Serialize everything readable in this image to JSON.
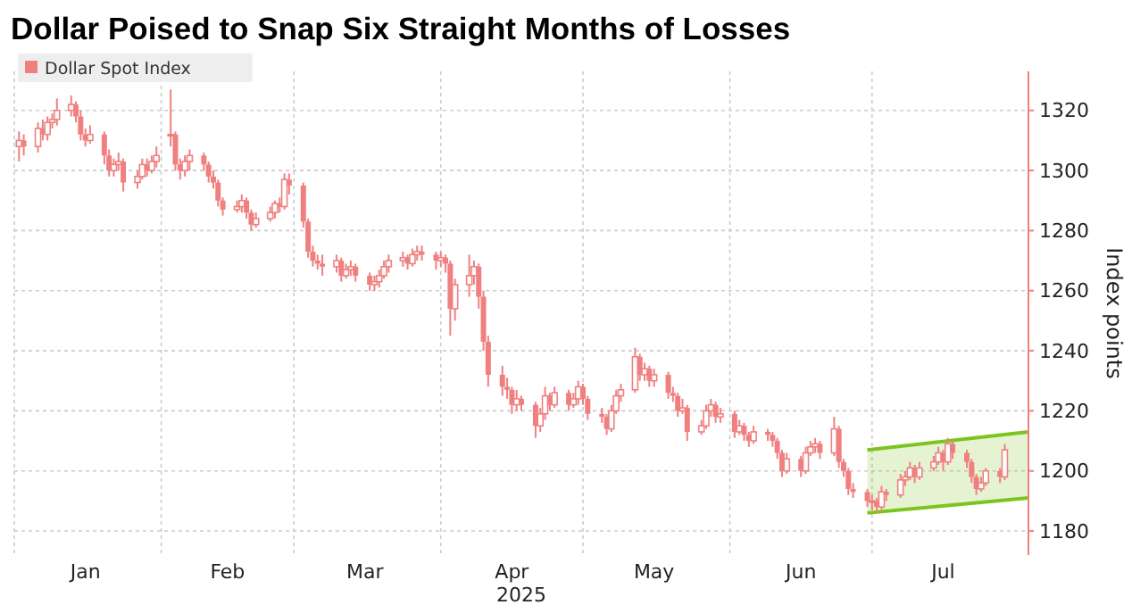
{
  "chart_data": {
    "type": "candlestick",
    "title": "Dollar Poised to Snap Six Straight Months of Losses",
    "xlabel": "2025",
    "ylabel": "Index points",
    "xlim": [
      "2025-01-01",
      "2025-08-03"
    ],
    "xticks": [
      {
        "value": "2025-01-01",
        "label": null
      },
      {
        "value": "2025-01-16",
        "label": "Jan"
      },
      {
        "value": "2025-02-01",
        "label": null
      },
      {
        "value": "2025-02-15",
        "label": "Feb"
      },
      {
        "value": "2025-03-01",
        "label": null
      },
      {
        "value": "2025-03-16",
        "label": "Mar"
      },
      {
        "value": "2025-04-01",
        "label": null
      },
      {
        "value": "2025-04-16",
        "label": "Apr"
      },
      {
        "value": "2025-05-01",
        "label": null
      },
      {
        "value": "2025-05-16",
        "label": "May"
      },
      {
        "value": "2025-06-01",
        "label": null
      },
      {
        "value": "2025-06-16",
        "label": "Jun"
      },
      {
        "value": "2025-07-01",
        "label": null
      },
      {
        "value": "2025-07-16",
        "label": "Jul"
      }
    ],
    "ylim": [
      1172,
      1333
    ],
    "yticks": [
      1180,
      1200,
      1220,
      1240,
      1260,
      1280,
      1300,
      1320
    ],
    "grid": true,
    "legend": "top left",
    "series": [
      {
        "type": "line",
        "color": "#7cc520",
        "x": [
          "2025-06-30",
          "2025-08-03"
        ],
        "values": [
          1207,
          1213
        ],
        "lower": [
          1186,
          1191
        ],
        "upper": [
          1207,
          1213
        ]
      },
      {
        "type": "line",
        "color": "#7cc520",
        "x": [
          "2025-06-30",
          "2025-08-03"
        ],
        "values": [
          1186,
          1191
        ]
      },
      {
        "name": "Dollar Spot Index",
        "color": "#f08080",
        "x": [
          "2025-01-02",
          "2025-01-03",
          "2025-01-06",
          "2025-01-07",
          "2025-01-08",
          "2025-01-09",
          "2025-01-10",
          "2025-01-13",
          "2025-01-14",
          "2025-01-15",
          "2025-01-16",
          "2025-01-17",
          "2025-01-20",
          "2025-01-21",
          "2025-01-22",
          "2025-01-23",
          "2025-01-24",
          "2025-01-27",
          "2025-01-28",
          "2025-01-29",
          "2025-01-30",
          "2025-01-31",
          "2025-02-03",
          "2025-02-04",
          "2025-02-05",
          "2025-02-06",
          "2025-02-07",
          "2025-02-10",
          "2025-02-11",
          "2025-02-12",
          "2025-02-13",
          "2025-02-14",
          "2025-02-17",
          "2025-02-18",
          "2025-02-19",
          "2025-02-20",
          "2025-02-21",
          "2025-02-24",
          "2025-02-25",
          "2025-02-26",
          "2025-02-27",
          "2025-02-28",
          "2025-03-03",
          "2025-03-04",
          "2025-03-05",
          "2025-03-06",
          "2025-03-07",
          "2025-03-10",
          "2025-03-11",
          "2025-03-12",
          "2025-03-13",
          "2025-03-14",
          "2025-03-17",
          "2025-03-18",
          "2025-03-19",
          "2025-03-20",
          "2025-03-21",
          "2025-03-24",
          "2025-03-25",
          "2025-03-26",
          "2025-03-27",
          "2025-03-28",
          "2025-03-31",
          "2025-04-01",
          "2025-04-02",
          "2025-04-03",
          "2025-04-04",
          "2025-04-07",
          "2025-04-08",
          "2025-04-09",
          "2025-04-10",
          "2025-04-11",
          "2025-04-14",
          "2025-04-15",
          "2025-04-16",
          "2025-04-17",
          "2025-04-18",
          "2025-04-21",
          "2025-04-22",
          "2025-04-23",
          "2025-04-24",
          "2025-04-25",
          "2025-04-28",
          "2025-04-29",
          "2025-04-30",
          "2025-05-01",
          "2025-05-02",
          "2025-05-05",
          "2025-05-06",
          "2025-05-07",
          "2025-05-08",
          "2025-05-09",
          "2025-05-12",
          "2025-05-13",
          "2025-05-14",
          "2025-05-15",
          "2025-05-16",
          "2025-05-19",
          "2025-05-20",
          "2025-05-21",
          "2025-05-22",
          "2025-05-23",
          "2025-05-26",
          "2025-05-27",
          "2025-05-28",
          "2025-05-29",
          "2025-05-30",
          "2025-06-02",
          "2025-06-03",
          "2025-06-04",
          "2025-06-05",
          "2025-06-06",
          "2025-06-09",
          "2025-06-10",
          "2025-06-11",
          "2025-06-12",
          "2025-06-13",
          "2025-06-16",
          "2025-06-17",
          "2025-06-18",
          "2025-06-19",
          "2025-06-20",
          "2025-06-23",
          "2025-06-24",
          "2025-06-25",
          "2025-06-26",
          "2025-06-27",
          "2025-06-30",
          "2025-07-01",
          "2025-07-02",
          "2025-07-03",
          "2025-07-04",
          "2025-07-07",
          "2025-07-08",
          "2025-07-09",
          "2025-07-10",
          "2025-07-11",
          "2025-07-14",
          "2025-07-15",
          "2025-07-16",
          "2025-07-17",
          "2025-07-18",
          "2025-07-21",
          "2025-07-22",
          "2025-07-23",
          "2025-07-24",
          "2025-07-25",
          "2025-07-28",
          "2025-07-29"
        ],
        "ohlc": [
          [
            1308,
            1313,
            1303,
            1310
          ],
          [
            1310,
            1312,
            1305,
            1308
          ],
          [
            1308,
            1316,
            1306,
            1314
          ],
          [
            1314,
            1317,
            1310,
            1312
          ],
          [
            1312,
            1318,
            1310,
            1316
          ],
          [
            1316,
            1319,
            1314,
            1317
          ],
          [
            1317,
            1324,
            1315,
            1320
          ],
          [
            1320,
            1325,
            1318,
            1322
          ],
          [
            1322,
            1323,
            1316,
            1318
          ],
          [
            1318,
            1320,
            1310,
            1312
          ],
          [
            1312,
            1314,
            1308,
            1310
          ],
          [
            1310,
            1315,
            1309,
            1312
          ],
          [
            1312,
            1313,
            1302,
            1305
          ],
          [
            1305,
            1307,
            1298,
            1300
          ],
          [
            1300,
            1304,
            1298,
            1302
          ],
          [
            1302,
            1306,
            1300,
            1303
          ],
          [
            1303,
            1304,
            1293,
            1296
          ],
          [
            1296,
            1300,
            1294,
            1298
          ],
          [
            1298,
            1304,
            1297,
            1302
          ],
          [
            1302,
            1304,
            1298,
            1300
          ],
          [
            1300,
            1305,
            1299,
            1303
          ],
          [
            1303,
            1308,
            1301,
            1305
          ],
          [
            1312,
            1327,
            1308,
            1312
          ],
          [
            1312,
            1313,
            1300,
            1302
          ],
          [
            1302,
            1304,
            1297,
            1300
          ],
          [
            1300,
            1305,
            1298,
            1303
          ],
          [
            1303,
            1307,
            1300,
            1305
          ],
          [
            1305,
            1306,
            1300,
            1302
          ],
          [
            1302,
            1303,
            1296,
            1298
          ],
          [
            1298,
            1300,
            1294,
            1296
          ],
          [
            1296,
            1297,
            1288,
            1290
          ],
          [
            1290,
            1291,
            1285,
            1287
          ],
          [
            1287,
            1290,
            1286,
            1288
          ],
          [
            1288,
            1292,
            1286,
            1290
          ],
          [
            1290,
            1291,
            1284,
            1286
          ],
          [
            1286,
            1287,
            1280,
            1282
          ],
          [
            1282,
            1286,
            1281,
            1284
          ],
          [
            1284,
            1288,
            1283,
            1286
          ],
          [
            1286,
            1290,
            1284,
            1289
          ],
          [
            1289,
            1291,
            1286,
            1288
          ],
          [
            1288,
            1299,
            1287,
            1297
          ],
          [
            1297,
            1299,
            1292,
            1295
          ],
          [
            1295,
            1296,
            1281,
            1283
          ],
          [
            1283,
            1284,
            1271,
            1273
          ],
          [
            1273,
            1275,
            1268,
            1270
          ],
          [
            1270,
            1272,
            1267,
            1269
          ],
          [
            1269,
            1272,
            1265,
            1268
          ],
          [
            1268,
            1272,
            1266,
            1270
          ],
          [
            1270,
            1271,
            1263,
            1265
          ],
          [
            1265,
            1269,
            1264,
            1267
          ],
          [
            1267,
            1270,
            1265,
            1268
          ],
          [
            1268,
            1269,
            1263,
            1265
          ],
          [
            1265,
            1266,
            1260,
            1262
          ],
          [
            1262,
            1265,
            1260,
            1263
          ],
          [
            1263,
            1267,
            1261,
            1265
          ],
          [
            1265,
            1270,
            1264,
            1268
          ],
          [
            1268,
            1272,
            1266,
            1270
          ],
          [
            1270,
            1273,
            1268,
            1271
          ],
          [
            1271,
            1272,
            1267,
            1269
          ],
          [
            1269,
            1274,
            1268,
            1272
          ],
          [
            1272,
            1275,
            1270,
            1273
          ],
          [
            1273,
            1275,
            1270,
            1272
          ],
          [
            1272,
            1273,
            1267,
            1270
          ],
          [
            1270,
            1273,
            1268,
            1271
          ],
          [
            1271,
            1272,
            1266,
            1269
          ],
          [
            1269,
            1270,
            1245,
            1254
          ],
          [
            1254,
            1264,
            1250,
            1262
          ],
          [
            1262,
            1272,
            1258,
            1265
          ],
          [
            1265,
            1270,
            1262,
            1268
          ],
          [
            1268,
            1269,
            1254,
            1258
          ],
          [
            1258,
            1260,
            1240,
            1243
          ],
          [
            1243,
            1245,
            1228,
            1232
          ],
          [
            1232,
            1235,
            1225,
            1228
          ],
          [
            1228,
            1231,
            1224,
            1227
          ],
          [
            1227,
            1228,
            1219,
            1222
          ],
          [
            1222,
            1227,
            1220,
            1224
          ],
          [
            1224,
            1225,
            1220,
            1222
          ],
          [
            1222,
            1223,
            1211,
            1215
          ],
          [
            1215,
            1221,
            1213,
            1219
          ],
          [
            1219,
            1228,
            1217,
            1225
          ],
          [
            1225,
            1226,
            1220,
            1222
          ],
          [
            1222,
            1228,
            1221,
            1226
          ],
          [
            1226,
            1227,
            1220,
            1222
          ],
          [
            1222,
            1226,
            1221,
            1224
          ],
          [
            1224,
            1230,
            1222,
            1228
          ],
          [
            1228,
            1229,
            1222,
            1224
          ],
          [
            1224,
            1225,
            1217,
            1219
          ],
          [
            1219,
            1221,
            1216,
            1218
          ],
          [
            1218,
            1219,
            1212,
            1214
          ],
          [
            1214,
            1222,
            1213,
            1220
          ],
          [
            1220,
            1227,
            1219,
            1225
          ],
          [
            1225,
            1229,
            1223,
            1227
          ],
          [
            1227,
            1241,
            1226,
            1238
          ],
          [
            1238,
            1239,
            1230,
            1232
          ],
          [
            1232,
            1236,
            1230,
            1234
          ],
          [
            1234,
            1235,
            1228,
            1230
          ],
          [
            1230,
            1234,
            1228,
            1232
          ],
          [
            1232,
            1233,
            1224,
            1226
          ],
          [
            1226,
            1228,
            1223,
            1225
          ],
          [
            1225,
            1226,
            1218,
            1220
          ],
          [
            1220,
            1224,
            1219,
            1221
          ],
          [
            1221,
            1222,
            1210,
            1213
          ],
          [
            1213,
            1217,
            1212,
            1215
          ],
          [
            1215,
            1222,
            1214,
            1220
          ],
          [
            1220,
            1224,
            1218,
            1222
          ],
          [
            1222,
            1223,
            1216,
            1218
          ],
          [
            1218,
            1221,
            1216,
            1219
          ],
          [
            1219,
            1220,
            1211,
            1213
          ],
          [
            1213,
            1217,
            1212,
            1215
          ],
          [
            1215,
            1216,
            1210,
            1212
          ],
          [
            1212,
            1213,
            1208,
            1210
          ],
          [
            1210,
            1215,
            1209,
            1213
          ],
          [
            1213,
            1214,
            1210,
            1212
          ],
          [
            1212,
            1213,
            1208,
            1210
          ],
          [
            1210,
            1211,
            1204,
            1206
          ],
          [
            1206,
            1207,
            1198,
            1200
          ],
          [
            1200,
            1206,
            1199,
            1204
          ],
          [
            1204,
            1205,
            1198,
            1200
          ],
          [
            1200,
            1208,
            1199,
            1206
          ],
          [
            1206,
            1210,
            1205,
            1208
          ],
          [
            1208,
            1211,
            1206,
            1209
          ],
          [
            1209,
            1210,
            1204,
            1206
          ],
          [
            1206,
            1218,
            1205,
            1214
          ],
          [
            1214,
            1215,
            1201,
            1203
          ],
          [
            1203,
            1204,
            1198,
            1200
          ],
          [
            1200,
            1201,
            1192,
            1194
          ],
          [
            1194,
            1196,
            1191,
            1193
          ],
          [
            1193,
            1194,
            1188,
            1190
          ],
          [
            1190,
            1192,
            1187,
            1190
          ],
          [
            1190,
            1191,
            1186,
            1188
          ],
          [
            1188,
            1195,
            1187,
            1193
          ],
          [
            1193,
            1194,
            1190,
            1192
          ],
          [
            1192,
            1199,
            1191,
            1197
          ],
          [
            1197,
            1200,
            1195,
            1198
          ],
          [
            1198,
            1203,
            1197,
            1201
          ],
          [
            1201,
            1202,
            1196,
            1198
          ],
          [
            1198,
            1203,
            1197,
            1201
          ],
          [
            1201,
            1205,
            1200,
            1203
          ],
          [
            1203,
            1208,
            1202,
            1206
          ],
          [
            1206,
            1207,
            1200,
            1203
          ],
          [
            1203,
            1211,
            1202,
            1209
          ],
          [
            1209,
            1210,
            1204,
            1206
          ],
          [
            1206,
            1207,
            1201,
            1203
          ],
          [
            1203,
            1204,
            1196,
            1198
          ],
          [
            1198,
            1199,
            1192,
            1194
          ],
          [
            1194,
            1198,
            1193,
            1196
          ],
          [
            1196,
            1201,
            1195,
            1200
          ],
          [
            1200,
            1201,
            1196,
            1198
          ],
          [
            1198,
            1209,
            1197,
            1207
          ]
        ]
      }
    ]
  }
}
